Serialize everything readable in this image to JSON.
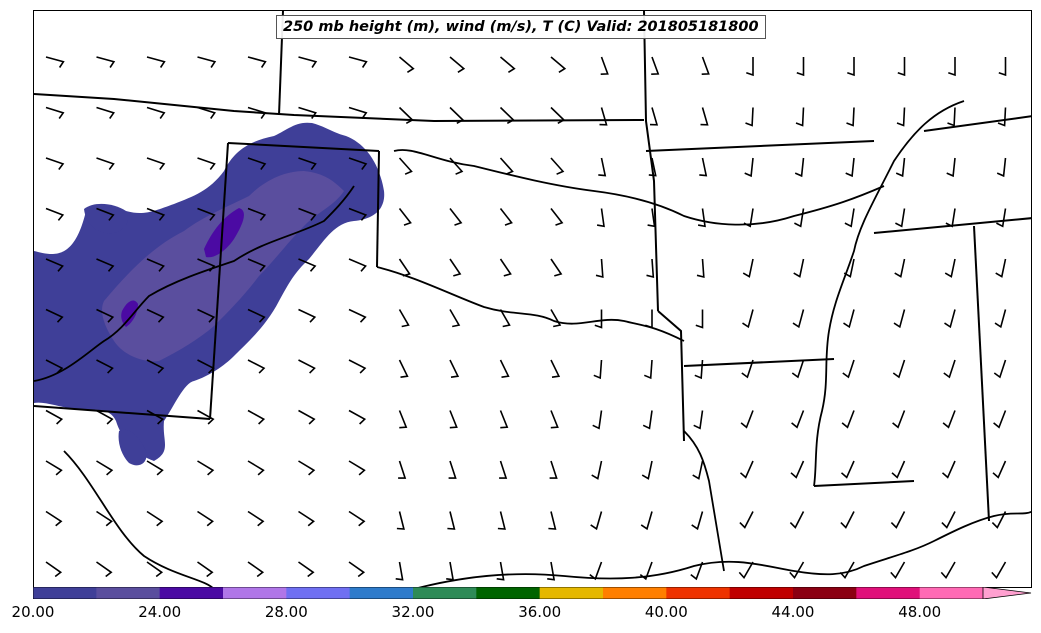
{
  "map": {
    "title": "250 mb height (m), wind (m/s), T (C) Valid: 201805181800",
    "fill_colors": [
      "#3f3f98",
      "#5a4e9e",
      "#4b0aa3",
      "#b076e8",
      "#6f6ff2",
      "#2e7bcb",
      "#2e8b57",
      "#006400",
      "#e5b800",
      "#ff7f00",
      "#ee3300",
      "#c00000",
      "#8b0012",
      "#e0107a",
      "#ff69b4"
    ],
    "extend_color": "#ffa0d0",
    "boundary_color": "#000000",
    "barb_color": "#000000"
  },
  "colorbar": {
    "min": 20,
    "max": 50,
    "step": 2,
    "tick_labels": [
      "20.00",
      "24.00",
      "28.00",
      "32.00",
      "36.00",
      "40.00",
      "44.00",
      "48.00"
    ],
    "extend": "max"
  }
}
